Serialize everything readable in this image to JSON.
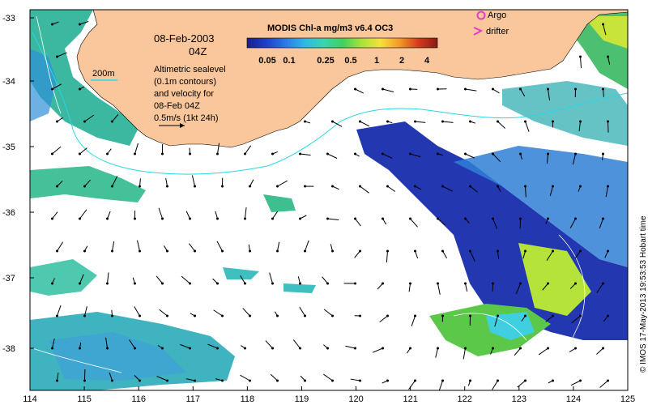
{
  "map": {
    "date": "08-Feb-2003",
    "time": "04Z",
    "contour_label": "200m",
    "legend_lines": [
      "Altimetric sealevel",
      "(0.1m contours)",
      "and velocity for",
      "08-Feb 04Z",
      "0.5m/s (1kt 24h)"
    ],
    "colorbar": {
      "title": "MODIS Chl-a mg/m3 v6.4 OC3",
      "ticks": [
        "0.05",
        "0.1",
        "0.25",
        "0.5",
        "1",
        "2",
        "4"
      ],
      "colors": [
        "#1a1f8c",
        "#1f3fc8",
        "#2a78e6",
        "#2fb6e8",
        "#39d6b0",
        "#3fcf60",
        "#a8e23a",
        "#f4e13c",
        "#f29a2a",
        "#d43a1e",
        "#8a1a14"
      ]
    },
    "markers": {
      "argo_label": "Argo",
      "drifter_label": "drifter"
    },
    "axes": {
      "lon_ticks": [
        "114",
        "115",
        "116",
        "117",
        "118",
        "119",
        "120",
        "121",
        "122",
        "123",
        "124",
        "125"
      ],
      "lat_ticks": [
        "-33",
        "-34",
        "-35",
        "-36",
        "-37",
        "-38"
      ]
    },
    "credit": "© IMOS 17-May-2013 19:53:53 Hobart time",
    "colors": {
      "land": "#f9c79b",
      "contour": "#28d7e6",
      "arrow": "#000000",
      "argo": "#e83acb",
      "drifter": "#e83acb"
    }
  }
}
